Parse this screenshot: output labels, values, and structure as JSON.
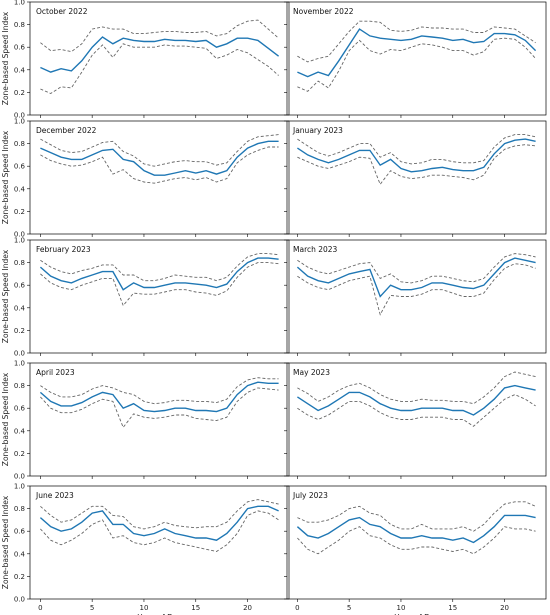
{
  "chart_data": {
    "type": "line",
    "ylabel": "Zone-based Speed Index",
    "xlabel": "Hour of Day",
    "xlim": [
      -1,
      24
    ],
    "ylim": [
      0,
      1
    ],
    "xticks": [
      0,
      5,
      10,
      15,
      20
    ],
    "yticks": [
      0.0,
      0.2,
      0.4,
      0.6,
      0.8,
      1.0
    ],
    "grid": false,
    "colors": {
      "mean": "#1f77b4",
      "bounds": "#666666"
    },
    "panels": [
      {
        "title": "October 2022",
        "mean": [
          0.42,
          0.38,
          0.41,
          0.39,
          0.48,
          0.6,
          0.69,
          0.63,
          0.68,
          0.66,
          0.65,
          0.65,
          0.67,
          0.66,
          0.66,
          0.65,
          0.66,
          0.6,
          0.63,
          0.68,
          0.68,
          0.66,
          0.59,
          0.52
        ],
        "upper": [
          0.64,
          0.57,
          0.58,
          0.56,
          0.63,
          0.76,
          0.78,
          0.76,
          0.76,
          0.72,
          0.72,
          0.73,
          0.74,
          0.74,
          0.73,
          0.73,
          0.74,
          0.7,
          0.72,
          0.79,
          0.83,
          0.84,
          0.76,
          0.68
        ],
        "lower": [
          0.23,
          0.19,
          0.25,
          0.24,
          0.38,
          0.53,
          0.62,
          0.51,
          0.63,
          0.6,
          0.6,
          0.6,
          0.62,
          0.61,
          0.61,
          0.6,
          0.59,
          0.5,
          0.53,
          0.58,
          0.55,
          0.49,
          0.43,
          0.35
        ]
      },
      {
        "title": "November 2022",
        "mean": [
          0.38,
          0.34,
          0.38,
          0.35,
          0.48,
          0.62,
          0.76,
          0.7,
          0.68,
          0.67,
          0.66,
          0.67,
          0.7,
          0.69,
          0.68,
          0.66,
          0.67,
          0.64,
          0.65,
          0.72,
          0.72,
          0.71,
          0.66,
          0.57
        ],
        "upper": [
          0.52,
          0.47,
          0.5,
          0.52,
          0.63,
          0.74,
          0.83,
          0.83,
          0.82,
          0.75,
          0.74,
          0.75,
          0.78,
          0.77,
          0.77,
          0.76,
          0.76,
          0.73,
          0.73,
          0.78,
          0.77,
          0.76,
          0.7,
          0.64
        ],
        "lower": [
          0.25,
          0.21,
          0.3,
          0.24,
          0.39,
          0.57,
          0.66,
          0.57,
          0.54,
          0.58,
          0.57,
          0.6,
          0.63,
          0.62,
          0.6,
          0.57,
          0.57,
          0.53,
          0.56,
          0.67,
          0.68,
          0.67,
          0.6,
          0.5
        ]
      },
      {
        "title": "December 2022",
        "mean": [
          0.76,
          0.72,
          0.68,
          0.66,
          0.66,
          0.7,
          0.74,
          0.75,
          0.66,
          0.64,
          0.56,
          0.52,
          0.52,
          0.54,
          0.56,
          0.54,
          0.56,
          0.53,
          0.56,
          0.68,
          0.76,
          0.8,
          0.82,
          0.82
        ],
        "upper": [
          0.84,
          0.79,
          0.74,
          0.72,
          0.73,
          0.77,
          0.81,
          0.82,
          0.73,
          0.69,
          0.62,
          0.6,
          0.62,
          0.64,
          0.65,
          0.64,
          0.64,
          0.61,
          0.63,
          0.73,
          0.82,
          0.86,
          0.87,
          0.88
        ],
        "lower": [
          0.7,
          0.65,
          0.62,
          0.6,
          0.61,
          0.64,
          0.68,
          0.53,
          0.57,
          0.49,
          0.46,
          0.45,
          0.47,
          0.49,
          0.5,
          0.48,
          0.5,
          0.46,
          0.49,
          0.63,
          0.7,
          0.74,
          0.77,
          0.77
        ]
      },
      {
        "title": "January 2023",
        "mean": [
          0.76,
          0.7,
          0.66,
          0.63,
          0.66,
          0.7,
          0.74,
          0.74,
          0.61,
          0.66,
          0.58,
          0.55,
          0.56,
          0.58,
          0.59,
          0.57,
          0.56,
          0.56,
          0.59,
          0.71,
          0.8,
          0.83,
          0.84,
          0.82
        ],
        "upper": [
          0.84,
          0.78,
          0.72,
          0.69,
          0.72,
          0.76,
          0.8,
          0.8,
          0.68,
          0.72,
          0.64,
          0.62,
          0.63,
          0.66,
          0.66,
          0.64,
          0.63,
          0.63,
          0.65,
          0.77,
          0.85,
          0.88,
          0.88,
          0.86
        ],
        "lower": [
          0.68,
          0.64,
          0.6,
          0.58,
          0.61,
          0.64,
          0.68,
          0.67,
          0.44,
          0.56,
          0.51,
          0.49,
          0.5,
          0.52,
          0.52,
          0.51,
          0.5,
          0.48,
          0.52,
          0.67,
          0.75,
          0.78,
          0.79,
          0.78
        ]
      },
      {
        "title": "February 2023",
        "mean": [
          0.76,
          0.68,
          0.64,
          0.62,
          0.66,
          0.69,
          0.72,
          0.72,
          0.56,
          0.62,
          0.58,
          0.58,
          0.6,
          0.62,
          0.62,
          0.61,
          0.6,
          0.58,
          0.61,
          0.72,
          0.8,
          0.84,
          0.84,
          0.83
        ],
        "upper": [
          0.82,
          0.76,
          0.72,
          0.7,
          0.73,
          0.75,
          0.78,
          0.78,
          0.69,
          0.69,
          0.64,
          0.64,
          0.66,
          0.69,
          0.68,
          0.67,
          0.67,
          0.64,
          0.67,
          0.77,
          0.85,
          0.88,
          0.88,
          0.87
        ],
        "lower": [
          0.7,
          0.62,
          0.58,
          0.56,
          0.6,
          0.63,
          0.66,
          0.66,
          0.42,
          0.53,
          0.52,
          0.52,
          0.54,
          0.56,
          0.56,
          0.54,
          0.53,
          0.51,
          0.55,
          0.67,
          0.76,
          0.8,
          0.8,
          0.79
        ]
      },
      {
        "title": "March 2023",
        "mean": [
          0.76,
          0.68,
          0.64,
          0.62,
          0.66,
          0.7,
          0.72,
          0.74,
          0.5,
          0.6,
          0.56,
          0.56,
          0.58,
          0.62,
          0.62,
          0.6,
          0.58,
          0.57,
          0.6,
          0.7,
          0.8,
          0.84,
          0.82,
          0.8
        ],
        "upper": [
          0.82,
          0.76,
          0.72,
          0.7,
          0.73,
          0.76,
          0.79,
          0.8,
          0.66,
          0.7,
          0.63,
          0.62,
          0.64,
          0.68,
          0.68,
          0.66,
          0.64,
          0.63,
          0.66,
          0.76,
          0.85,
          0.88,
          0.87,
          0.85
        ],
        "lower": [
          0.68,
          0.62,
          0.58,
          0.56,
          0.6,
          0.64,
          0.66,
          0.68,
          0.34,
          0.51,
          0.5,
          0.5,
          0.52,
          0.56,
          0.56,
          0.53,
          0.5,
          0.5,
          0.53,
          0.65,
          0.75,
          0.79,
          0.78,
          0.75
        ]
      },
      {
        "title": "April 2023",
        "mean": [
          0.74,
          0.66,
          0.62,
          0.62,
          0.65,
          0.7,
          0.74,
          0.72,
          0.6,
          0.64,
          0.58,
          0.57,
          0.58,
          0.6,
          0.6,
          0.58,
          0.58,
          0.57,
          0.6,
          0.72,
          0.8,
          0.83,
          0.82,
          0.82
        ],
        "upper": [
          0.8,
          0.74,
          0.7,
          0.7,
          0.72,
          0.77,
          0.8,
          0.78,
          0.74,
          0.72,
          0.66,
          0.64,
          0.65,
          0.67,
          0.67,
          0.66,
          0.66,
          0.65,
          0.68,
          0.79,
          0.85,
          0.87,
          0.86,
          0.86
        ],
        "lower": [
          0.7,
          0.6,
          0.56,
          0.56,
          0.59,
          0.64,
          0.68,
          0.66,
          0.43,
          0.55,
          0.52,
          0.51,
          0.52,
          0.54,
          0.54,
          0.51,
          0.5,
          0.49,
          0.52,
          0.66,
          0.74,
          0.78,
          0.77,
          0.76
        ]
      },
      {
        "title": "May 2023",
        "mean": [
          0.7,
          0.64,
          0.58,
          0.62,
          0.68,
          0.74,
          0.74,
          0.7,
          0.64,
          0.6,
          0.58,
          0.58,
          0.6,
          0.6,
          0.6,
          0.58,
          0.58,
          0.54,
          0.6,
          0.68,
          0.78,
          0.8,
          0.78,
          0.76
        ],
        "upper": [
          0.78,
          0.73,
          0.66,
          0.7,
          0.76,
          0.8,
          0.82,
          0.78,
          0.72,
          0.68,
          0.66,
          0.66,
          0.68,
          0.67,
          0.67,
          0.66,
          0.66,
          0.64,
          0.7,
          0.78,
          0.88,
          0.92,
          0.9,
          0.88
        ],
        "lower": [
          0.6,
          0.54,
          0.5,
          0.54,
          0.6,
          0.66,
          0.66,
          0.62,
          0.56,
          0.52,
          0.5,
          0.5,
          0.52,
          0.52,
          0.52,
          0.5,
          0.5,
          0.44,
          0.52,
          0.6,
          0.68,
          0.72,
          0.68,
          0.62
        ]
      },
      {
        "title": "June 2023",
        "mean": [
          0.72,
          0.64,
          0.6,
          0.62,
          0.68,
          0.76,
          0.78,
          0.66,
          0.66,
          0.58,
          0.56,
          0.58,
          0.62,
          0.58,
          0.56,
          0.54,
          0.54,
          0.52,
          0.58,
          0.68,
          0.8,
          0.82,
          0.82,
          0.78
        ],
        "upper": [
          0.82,
          0.74,
          0.68,
          0.7,
          0.76,
          0.82,
          0.82,
          0.74,
          0.73,
          0.64,
          0.62,
          0.64,
          0.68,
          0.65,
          0.64,
          0.63,
          0.64,
          0.64,
          0.68,
          0.78,
          0.86,
          0.88,
          0.86,
          0.84
        ],
        "lower": [
          0.62,
          0.52,
          0.48,
          0.52,
          0.58,
          0.66,
          0.7,
          0.54,
          0.56,
          0.5,
          0.48,
          0.5,
          0.54,
          0.5,
          0.48,
          0.46,
          0.44,
          0.42,
          0.48,
          0.58,
          0.74,
          0.78,
          0.76,
          0.7
        ]
      },
      {
        "title": "July 2023",
        "mean": [
          0.64,
          0.56,
          0.54,
          0.58,
          0.64,
          0.7,
          0.72,
          0.66,
          0.64,
          0.58,
          0.54,
          0.54,
          0.56,
          0.54,
          0.54,
          0.52,
          0.54,
          0.5,
          0.56,
          0.64,
          0.74,
          0.74,
          0.74,
          0.72
        ],
        "upper": [
          0.72,
          0.68,
          0.68,
          0.7,
          0.74,
          0.8,
          0.82,
          0.76,
          0.74,
          0.66,
          0.62,
          0.62,
          0.66,
          0.62,
          0.62,
          0.62,
          0.64,
          0.6,
          0.66,
          0.76,
          0.84,
          0.86,
          0.86,
          0.82
        ],
        "lower": [
          0.54,
          0.44,
          0.4,
          0.46,
          0.52,
          0.6,
          0.64,
          0.56,
          0.54,
          0.48,
          0.44,
          0.44,
          0.46,
          0.46,
          0.44,
          0.42,
          0.44,
          0.4,
          0.46,
          0.54,
          0.64,
          0.62,
          0.62,
          0.6
        ]
      }
    ]
  }
}
